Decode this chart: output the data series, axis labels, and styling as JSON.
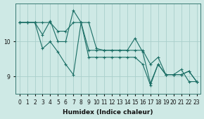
{
  "xlabel": "Humidex (Indice chaleur)",
  "ylabel": "",
  "background_color": "#cee9e5",
  "grid_color": "#aacfcb",
  "line_color": "#1a6e65",
  "hours": [
    0,
    1,
    2,
    3,
    4,
    5,
    6,
    7,
    8,
    9,
    10,
    11,
    12,
    13,
    14,
    15,
    16,
    17,
    18,
    19,
    20,
    21,
    22,
    23
  ],
  "line_upper": [
    10.55,
    10.55,
    10.55,
    10.55,
    10.55,
    10.3,
    10.3,
    10.55,
    10.55,
    10.55,
    9.8,
    9.75,
    9.75,
    9.75,
    9.75,
    9.75,
    9.75,
    9.35,
    9.55,
    9.05,
    9.05,
    9.05,
    9.15,
    8.85
  ],
  "line_mid": [
    10.55,
    10.55,
    10.55,
    10.2,
    10.6,
    10.0,
    10.0,
    10.9,
    10.55,
    9.75,
    9.75,
    9.75,
    9.75,
    9.75,
    9.75,
    10.1,
    9.7,
    8.8,
    9.35,
    9.05,
    9.05,
    9.05,
    9.15,
    8.85
  ],
  "line_lower": [
    10.55,
    10.55,
    10.55,
    9.8,
    10.0,
    9.7,
    9.35,
    9.05,
    10.55,
    9.55,
    9.55,
    9.55,
    9.55,
    9.55,
    9.55,
    9.55,
    9.35,
    8.75,
    9.35,
    9.05,
    9.05,
    9.2,
    8.85,
    8.85
  ],
  "yticks": [
    9,
    10
  ],
  "ylim": [
    8.5,
    11.1
  ],
  "xlim": [
    -0.5,
    23.5
  ],
  "tick_fontsize": 5.5,
  "label_fontsize": 6.5
}
